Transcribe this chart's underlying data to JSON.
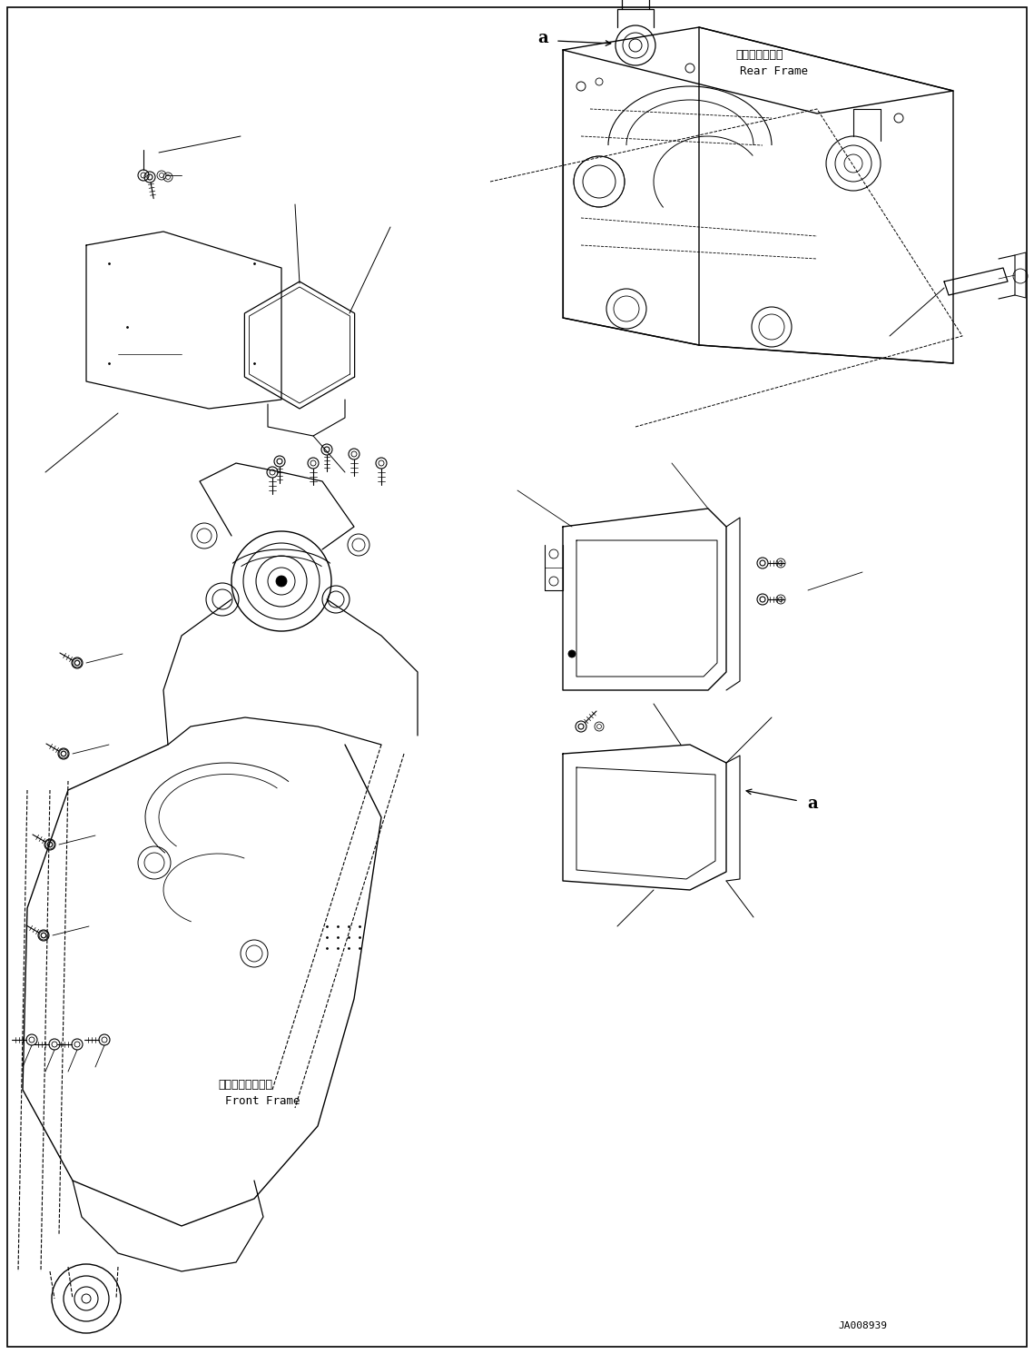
{
  "background_color": "#ffffff",
  "line_color": "#000000",
  "label_rear_frame_jp": "リヤーフレーム",
  "label_rear_frame_en": "Rear Frame",
  "label_front_frame_jp": "フロントフレーム",
  "label_front_frame_en": "Front Frame",
  "label_a": "a",
  "doc_number": "JA008939",
  "figsize": [
    11.39,
    14.91
  ],
  "dpi": 100
}
